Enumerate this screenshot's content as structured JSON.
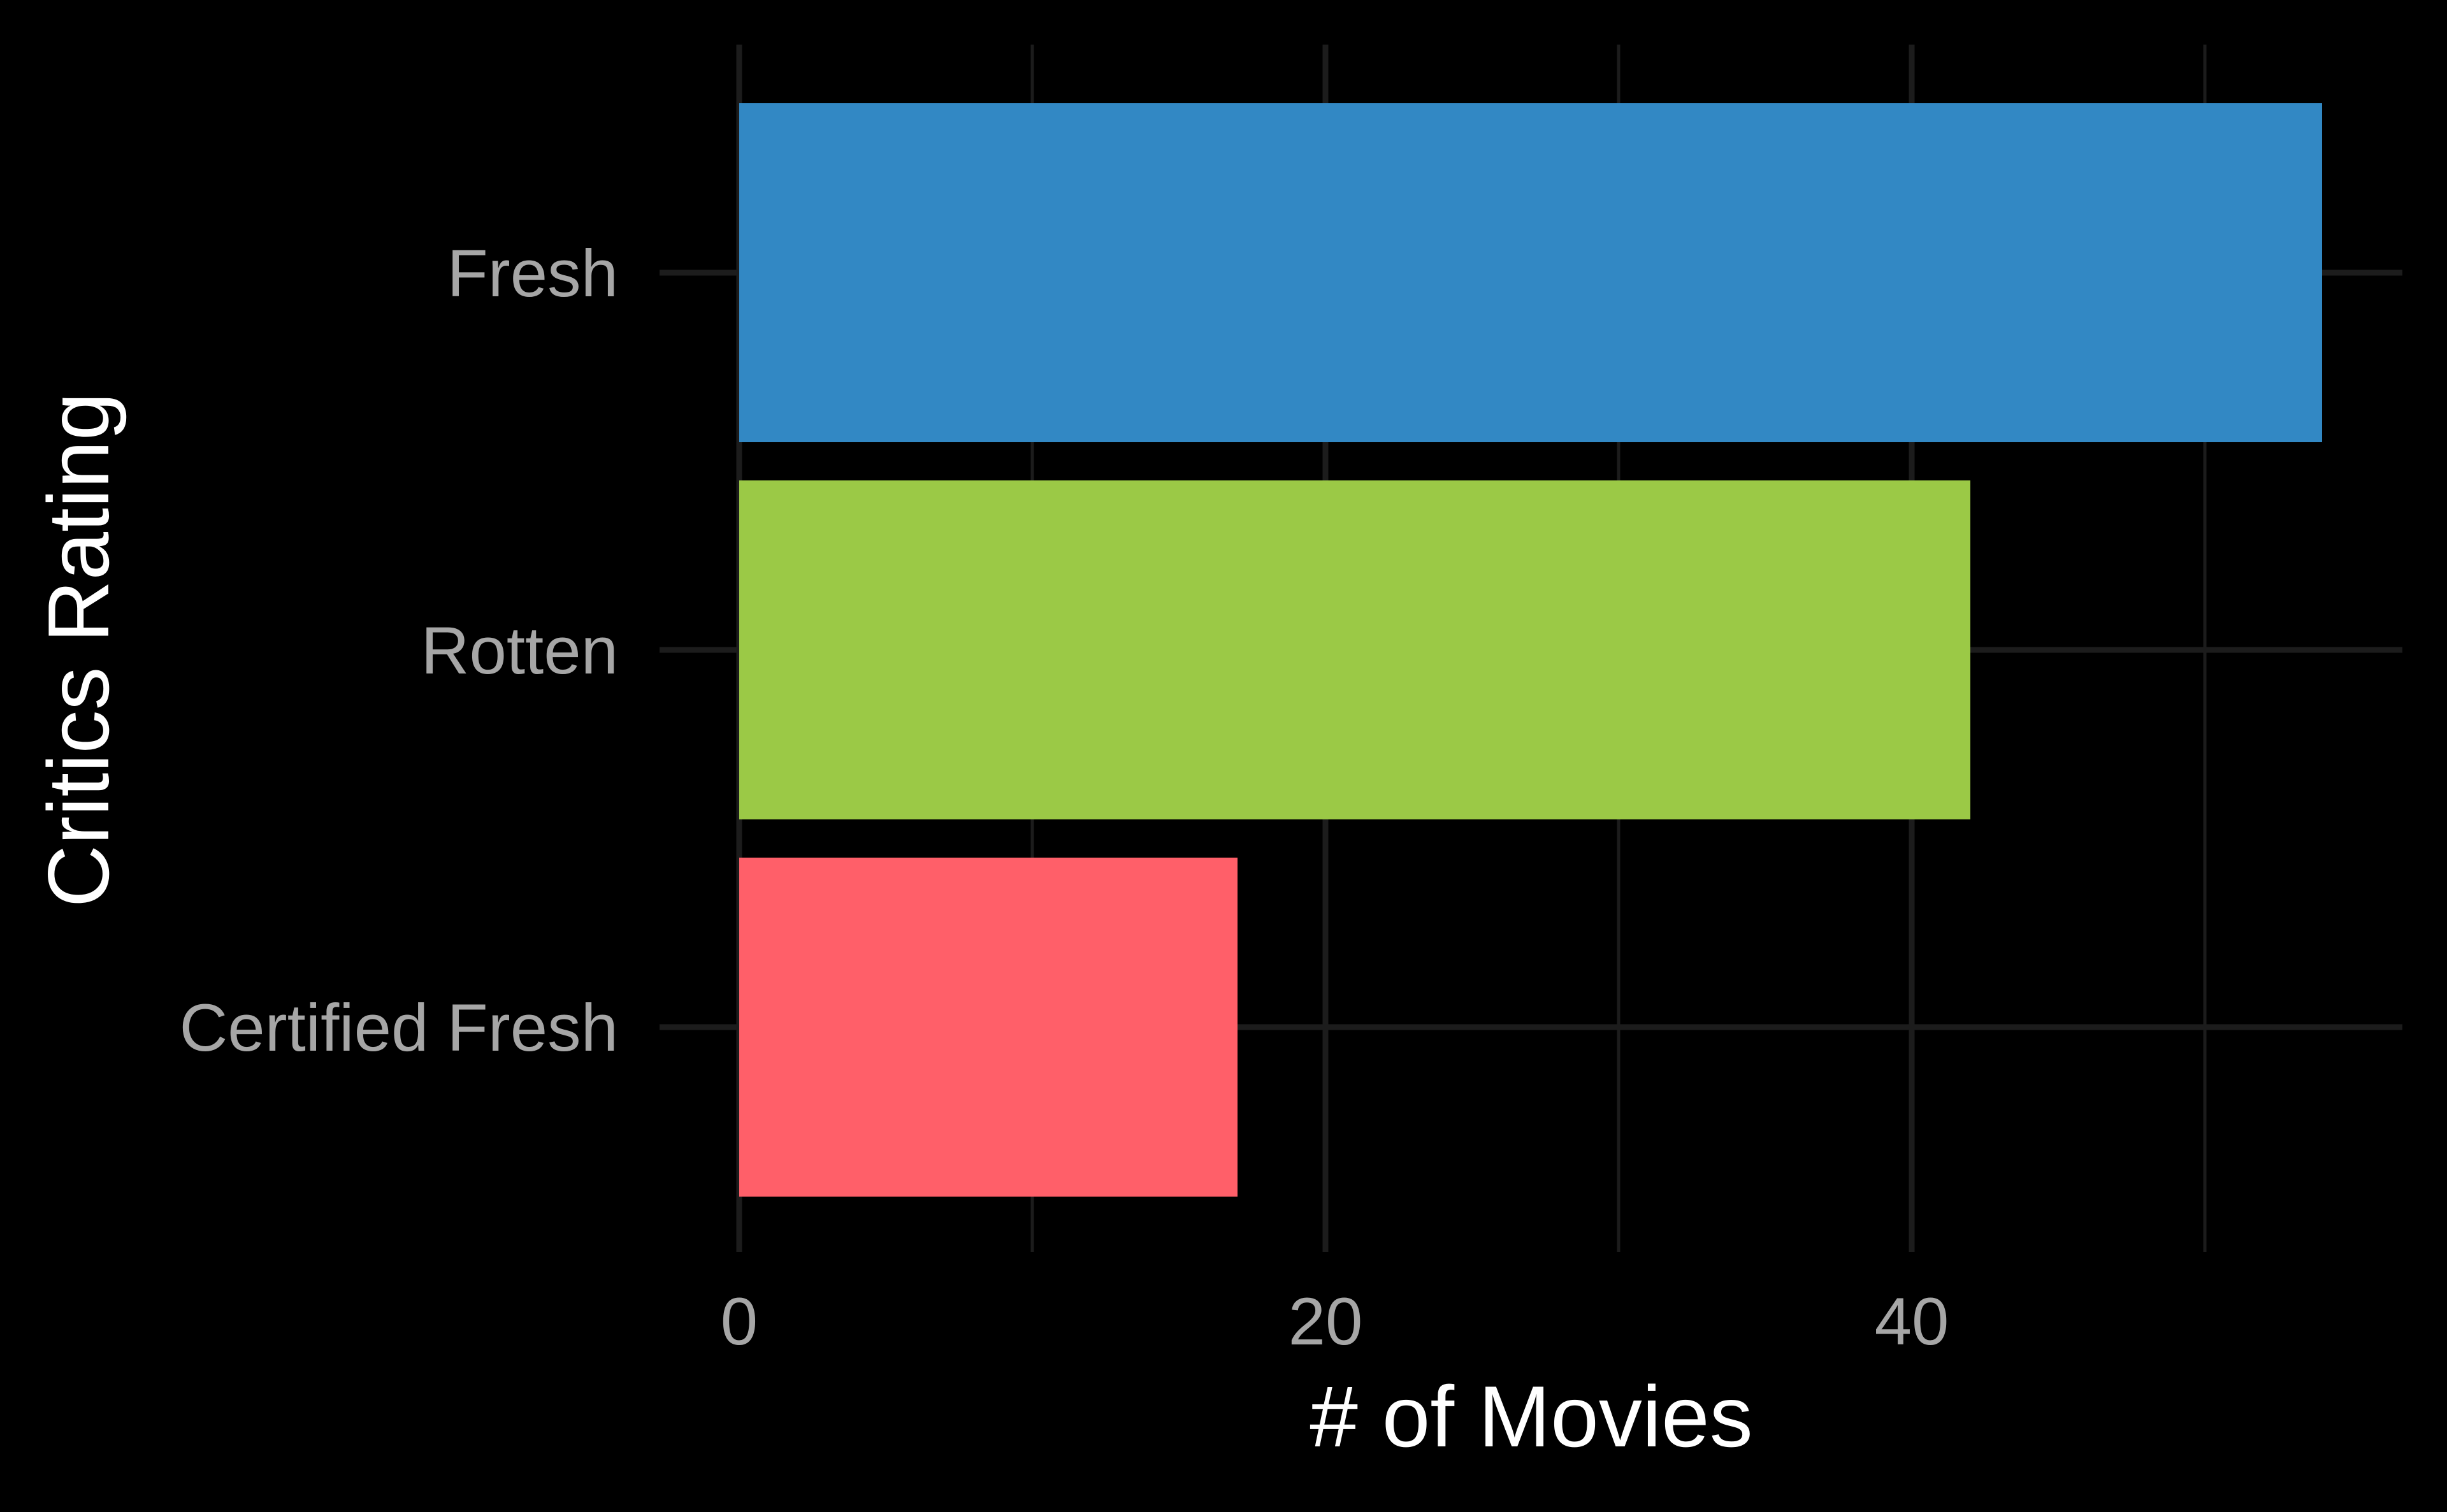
{
  "chart_data": {
    "type": "bar",
    "orientation": "horizontal",
    "title": "",
    "xlabel": "# of Movies",
    "ylabel": "Critics Rating",
    "categories": [
      "Fresh",
      "Rotten",
      "Certified Fresh"
    ],
    "values": [
      54,
      42,
      17
    ],
    "colors": [
      "#3288c4",
      "#9bc946",
      "#ff5f69"
    ],
    "xlim": [
      0,
      57
    ],
    "xticks": [
      0,
      20,
      40
    ],
    "xtick_labels": [
      "0",
      "20",
      "40"
    ],
    "grid": true,
    "legend": "none",
    "background": "#000000",
    "grid_color": "#1c1c1c"
  }
}
